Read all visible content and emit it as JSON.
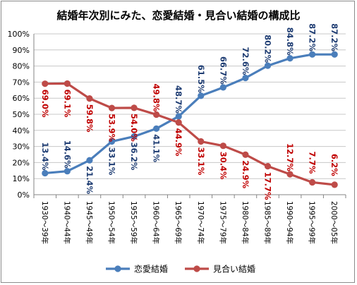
{
  "chart_data": {
    "type": "line",
    "title": "結婚年次別にみた、恋愛結婚・見合い結婚の構成比",
    "xlabel": "",
    "ylabel": "",
    "ylim": [
      0,
      100
    ],
    "yticks": [
      "0%",
      "10%",
      "20%",
      "30%",
      "40%",
      "50%",
      "60%",
      "70%",
      "80%",
      "90%",
      "100%"
    ],
    "categories": [
      "1930〜39年",
      "1940〜44年",
      "1945〜49年",
      "1950〜54年",
      "1955〜59年",
      "1960〜64年",
      "1965〜69年",
      "1970〜74年",
      "1975〜79年",
      "1980〜84年",
      "1985〜89年",
      "1990〜94年",
      "1995〜99年",
      "2000〜05年"
    ],
    "series": [
      {
        "name": "恋愛結婚",
        "color": "#4a7ebb",
        "label_color": "#1f3d73",
        "values": [
          13.4,
          14.6,
          21.4,
          33.1,
          36.2,
          41.1,
          48.7,
          61.5,
          66.7,
          72.6,
          80.2,
          84.8,
          87.2,
          87.2
        ],
        "labels": [
          "13.4%",
          "14.6%",
          "21.4%",
          "33.1%",
          "36.2%",
          "41.1%",
          "48.7%",
          "61.5%",
          "66.7%",
          "72.6%",
          "80.2%",
          "84.8%",
          "87.2%",
          "87.2%"
        ]
      },
      {
        "name": "見合い結婚",
        "color": "#be4b48",
        "label_color": "#c00000",
        "values": [
          69.0,
          69.1,
          59.8,
          53.9,
          54.0,
          49.8,
          44.9,
          33.1,
          30.4,
          24.9,
          17.7,
          12.7,
          7.7,
          6.2
        ],
        "labels": [
          "69.0%",
          "69.1%",
          "59.8%",
          "53.9%",
          "54.0%",
          "49.8%",
          "44.9%",
          "33.1%",
          "30.4%",
          "24.9%",
          "17.7%",
          "12.7%",
          "7.7%",
          "6.2%"
        ]
      }
    ],
    "legend": "bottom",
    "grid": true
  }
}
